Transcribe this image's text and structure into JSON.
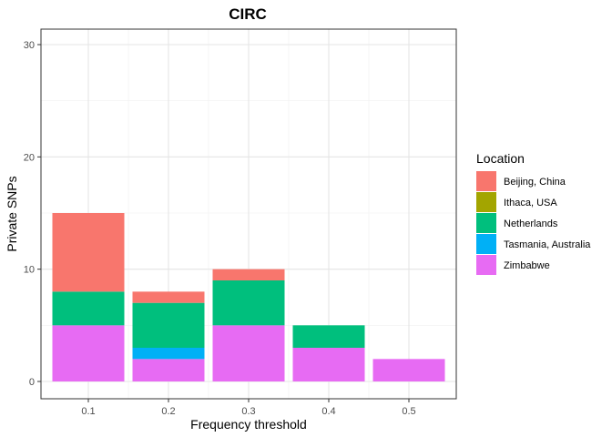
{
  "chart_data": {
    "type": "bar",
    "stacked": true,
    "title": "CIRC",
    "xlabel": "Frequency threshold",
    "ylabel": "Private SNPs",
    "categories": [
      "0.1",
      "0.2",
      "0.3",
      "0.4",
      "0.5"
    ],
    "ylim": [
      0,
      30
    ],
    "yticks": [
      0,
      10,
      20,
      30
    ],
    "grid": true,
    "legend_title": "Location",
    "legend_position": "right",
    "series": [
      {
        "name": "Beijing, China",
        "color": "#F8766D",
        "values": [
          7,
          1,
          1,
          0,
          0
        ]
      },
      {
        "name": "Ithaca, USA",
        "color": "#A3A500",
        "values": [
          0,
          0,
          0,
          0,
          0
        ]
      },
      {
        "name": "Netherlands",
        "color": "#00BF7D",
        "values": [
          3,
          4,
          4,
          2,
          0
        ]
      },
      {
        "name": "Tasmania, Australia",
        "color": "#00B0F6",
        "values": [
          0,
          1,
          0,
          0,
          0
        ]
      },
      {
        "name": "Zimbabwe",
        "color": "#E76BF3",
        "values": [
          5,
          2,
          5,
          3,
          2
        ]
      }
    ]
  }
}
